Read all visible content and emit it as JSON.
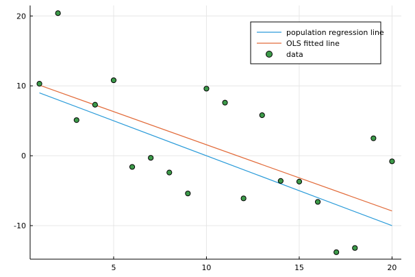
{
  "chart_data": {
    "type": "scatter",
    "title": "",
    "xlabel": "",
    "ylabel": "",
    "xlim": [
      0.5,
      20.5
    ],
    "ylim": [
      -14.8,
      21.5
    ],
    "xticks": [
      5,
      10,
      15,
      20
    ],
    "yticks": [
      -10,
      0,
      10,
      20
    ],
    "ytick_labels": [
      "-10",
      "0",
      "10",
      "20"
    ],
    "grid": true,
    "legend_position": "top-right",
    "series": [
      {
        "name": "population regression line",
        "kind": "line",
        "color": "#2a9bd9",
        "x": [
          1,
          20
        ],
        "y": [
          9.0,
          -10.0
        ]
      },
      {
        "name": "OLS fitted line",
        "kind": "line",
        "color": "#e26b3a",
        "x": [
          1,
          20
        ],
        "y": [
          10.1,
          -7.9
        ]
      },
      {
        "name": "data",
        "kind": "scatter",
        "color": "#3d9a4a",
        "x": [
          1,
          2,
          3,
          4,
          5,
          6,
          7,
          8,
          9,
          10,
          11,
          12,
          13,
          14,
          15,
          16,
          17,
          18,
          19,
          20
        ],
        "y": [
          10.3,
          20.4,
          5.1,
          7.3,
          10.8,
          -1.6,
          -0.3,
          -2.4,
          -5.4,
          9.6,
          7.6,
          -6.1,
          5.8,
          -3.6,
          -3.7,
          -6.6,
          -13.8,
          -13.2,
          2.5,
          -0.8
        ]
      }
    ]
  }
}
